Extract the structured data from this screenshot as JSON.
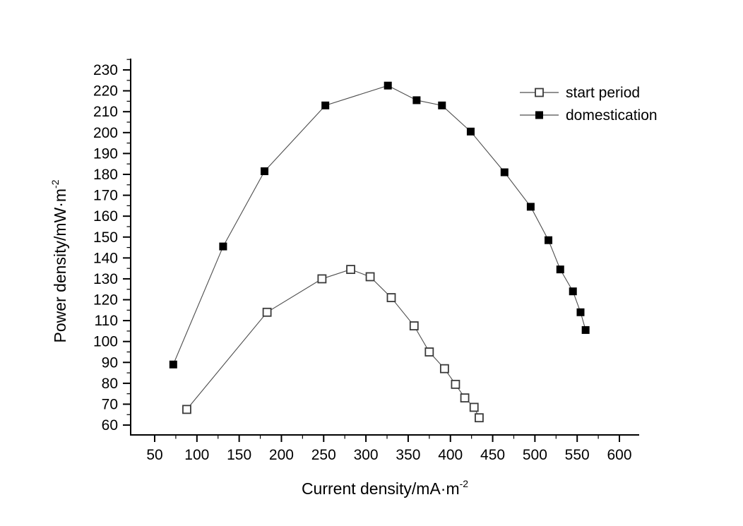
{
  "figure": {
    "background_color": "#ffffff",
    "text_color": "#000000",
    "axis_color": "#000000",
    "series_line_color": "#4d4d4d"
  },
  "chart_data": {
    "type": "line",
    "title": "",
    "xlabel": "Current density/mA·m⁻²",
    "xlabel_base": "Current density/mA·m",
    "xlabel_exp": "-2",
    "ylabel": "Power density/mW·m⁻²",
    "ylabel_base": "Power density/mW·m",
    "ylabel_exp": "-2",
    "grid": false,
    "x_axis": {
      "min": 20,
      "max": 623,
      "major_ticks": [
        50,
        100,
        150,
        200,
        250,
        300,
        350,
        400,
        450,
        500,
        550,
        600
      ],
      "minor_ticks": [
        75,
        125,
        175,
        225,
        275,
        325,
        375,
        425,
        475,
        525,
        575
      ]
    },
    "y_axis": {
      "min": 55,
      "max": 235,
      "major_ticks": [
        60,
        70,
        80,
        90,
        100,
        110,
        120,
        130,
        140,
        150,
        160,
        170,
        180,
        190,
        200,
        210,
        220,
        230
      ],
      "minor_ticks": [
        65,
        75,
        85,
        95,
        105,
        115,
        125,
        135,
        145,
        155,
        165,
        175,
        185,
        195,
        205,
        215,
        225,
        235
      ]
    },
    "legend": {
      "position": "top-right",
      "entries": [
        {
          "label": "start period",
          "marker": "open-square"
        },
        {
          "label": "domestication",
          "marker": "filled-square"
        }
      ]
    },
    "series": [
      {
        "name": "start period",
        "marker": "open-square",
        "points": [
          [
            88,
            67.5
          ],
          [
            183,
            114
          ],
          [
            248,
            130
          ],
          [
            282,
            134.5
          ],
          [
            305,
            131
          ],
          [
            330,
            121
          ],
          [
            357,
            107.5
          ],
          [
            375,
            95
          ],
          [
            393,
            87
          ],
          [
            406,
            79.5
          ],
          [
            417,
            73
          ],
          [
            428,
            68.5
          ],
          [
            434,
            63.5
          ]
        ]
      },
      {
        "name": "domestication",
        "marker": "filled-square",
        "points": [
          [
            72,
            89
          ],
          [
            131,
            145.5
          ],
          [
            180,
            181.5
          ],
          [
            252,
            213
          ],
          [
            326,
            222.5
          ],
          [
            360,
            215.5
          ],
          [
            390,
            213
          ],
          [
            424,
            200.5
          ],
          [
            464,
            181
          ],
          [
            495,
            164.5
          ],
          [
            516,
            148.5
          ],
          [
            530,
            134.5
          ],
          [
            545,
            124
          ],
          [
            554,
            114
          ],
          [
            560,
            105.5
          ]
        ]
      }
    ]
  }
}
